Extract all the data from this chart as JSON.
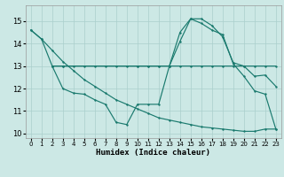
{
  "background_color": "#cce8e5",
  "grid_color": "#aacfcc",
  "line_color": "#1a7a6e",
  "xlabel": "Humidex (Indice chaleur)",
  "xlim": [
    -0.5,
    23.5
  ],
  "ylim": [
    9.8,
    15.7
  ],
  "yticks": [
    10,
    11,
    12,
    13,
    14,
    15
  ],
  "xticks": [
    0,
    1,
    2,
    3,
    4,
    5,
    6,
    7,
    8,
    9,
    10,
    11,
    12,
    13,
    14,
    15,
    16,
    17,
    18,
    19,
    20,
    21,
    22,
    23
  ],
  "s1_x": [
    0,
    1,
    2,
    3,
    4,
    5,
    6,
    7,
    8,
    9,
    10,
    11,
    12,
    13,
    14,
    15,
    16,
    17,
    18,
    19,
    20,
    21,
    22,
    23
  ],
  "s1_y": [
    14.6,
    14.2,
    13.0,
    13.0,
    13.0,
    13.0,
    13.0,
    13.0,
    13.0,
    13.0,
    13.0,
    13.0,
    13.0,
    13.0,
    13.0,
    13.0,
    13.0,
    13.0,
    13.0,
    13.0,
    13.0,
    13.0,
    13.0,
    13.0
  ],
  "s2_x": [
    0,
    1,
    2,
    3,
    4,
    5,
    6,
    7,
    8,
    9,
    10,
    11,
    12,
    13,
    14,
    15,
    16,
    17,
    18,
    19,
    20,
    21,
    22,
    23
  ],
  "s2_y": [
    14.6,
    14.2,
    13.7,
    13.2,
    12.8,
    12.4,
    12.1,
    11.8,
    11.5,
    11.3,
    11.1,
    10.9,
    10.7,
    10.6,
    10.5,
    10.4,
    10.3,
    10.25,
    10.2,
    10.15,
    10.1,
    10.1,
    10.2,
    10.2
  ],
  "s3_x": [
    2,
    3,
    4,
    5,
    6,
    7,
    8,
    9,
    10,
    11,
    12,
    13,
    14,
    15,
    16,
    17,
    18,
    19,
    20,
    21,
    22,
    23
  ],
  "s3_y": [
    13.0,
    12.0,
    11.8,
    11.75,
    11.5,
    11.3,
    10.5,
    10.4,
    11.3,
    11.3,
    11.3,
    13.0,
    14.1,
    15.1,
    14.9,
    14.6,
    14.4,
    13.1,
    12.55,
    11.9,
    11.75,
    10.2
  ],
  "s4_x": [
    2,
    3,
    10,
    11,
    12,
    13,
    14,
    15,
    16,
    17,
    18,
    19,
    20,
    21,
    22,
    23
  ],
  "s4_y": [
    13.0,
    13.0,
    13.0,
    13.0,
    13.0,
    13.0,
    14.5,
    15.1,
    15.1,
    14.8,
    14.3,
    13.15,
    13.0,
    12.55,
    12.6,
    12.1
  ]
}
